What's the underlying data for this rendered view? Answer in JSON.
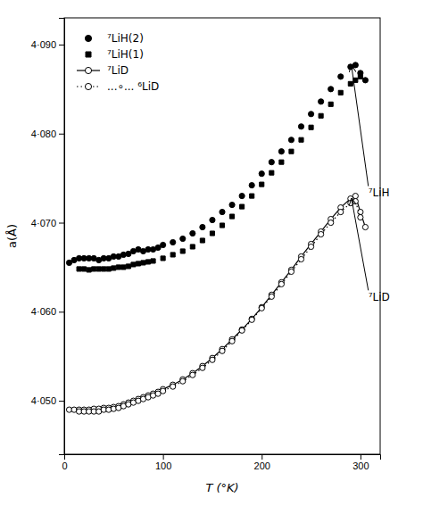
{
  "chart_data": {
    "type": "scatter",
    "xlabel": "T (°K)",
    "ylabel": "a(Å)",
    "xlim": [
      0,
      320
    ],
    "ylim": [
      4.044,
      4.093
    ],
    "xticks": [
      0,
      100,
      200,
      300
    ],
    "yticks": [
      {
        "value": 4.05,
        "label": "4·050"
      },
      {
        "value": 4.06,
        "label": "4·060"
      },
      {
        "value": 4.07,
        "label": "4·070"
      },
      {
        "value": 4.08,
        "label": "4·080"
      },
      {
        "value": 4.09,
        "label": "4·090"
      }
    ],
    "grid": false,
    "legend": "upper left",
    "series": [
      {
        "name": "⁷LiH(2)",
        "type": "scatter",
        "color": "#000000",
        "marker": "circle",
        "x": [
          5,
          10,
          15,
          20,
          25,
          30,
          35,
          40,
          45,
          50,
          55,
          60,
          65,
          70,
          75,
          80,
          85,
          90,
          95,
          100,
          110,
          120,
          130,
          140,
          150,
          160,
          170,
          180,
          190,
          200,
          210,
          220,
          230,
          240,
          250,
          260,
          270,
          280,
          290,
          295,
          300,
          305
        ],
        "values": [
          4.0655,
          4.0658,
          4.066,
          4.066,
          4.066,
          4.066,
          4.0658,
          4.066,
          4.066,
          4.0662,
          4.0662,
          4.0664,
          4.0665,
          4.0668,
          4.067,
          4.0668,
          4.067,
          4.067,
          4.0672,
          4.0675,
          4.0678,
          4.0682,
          4.0688,
          4.0695,
          4.0703,
          4.0712,
          4.072,
          4.073,
          4.0742,
          4.0755,
          4.0768,
          4.078,
          4.0793,
          4.0808,
          4.0822,
          4.0836,
          4.085,
          4.0864,
          4.0875,
          4.0877,
          4.0868,
          4.086
        ]
      },
      {
        "name": "⁷LiH(1)",
        "type": "scatter",
        "color": "#000000",
        "marker": "square",
        "x": [
          15,
          20,
          25,
          30,
          35,
          40,
          45,
          50,
          55,
          60,
          65,
          70,
          75,
          80,
          85,
          90,
          100,
          110,
          120,
          130,
          140,
          150,
          160,
          170,
          180,
          190,
          200,
          210,
          220,
          230,
          240,
          250,
          260,
          270,
          280,
          290,
          295,
          300
        ],
        "values": [
          4.0648,
          4.0648,
          4.0647,
          4.0648,
          4.0648,
          4.0648,
          4.0648,
          4.0649,
          4.065,
          4.065,
          4.0651,
          4.0653,
          4.0654,
          4.0655,
          4.0656,
          4.0657,
          4.066,
          4.0664,
          4.0668,
          4.0673,
          4.068,
          4.0688,
          4.0697,
          4.0707,
          4.0718,
          4.073,
          4.0743,
          4.0756,
          4.0768,
          4.078,
          4.0793,
          4.0807,
          4.082,
          4.0833,
          4.0846,
          4.0856,
          4.086,
          4.0864
        ]
      },
      {
        "name": "⁷LiD",
        "type": "line",
        "color": "#000000",
        "marker": "circle-open",
        "line_style": "solid",
        "x": [
          5,
          10,
          15,
          20,
          25,
          30,
          35,
          40,
          45,
          50,
          55,
          60,
          65,
          70,
          75,
          80,
          85,
          90,
          95,
          100,
          110,
          120,
          130,
          140,
          150,
          160,
          170,
          180,
          190,
          200,
          210,
          220,
          230,
          240,
          250,
          260,
          270,
          280,
          290,
          295,
          300,
          305
        ],
        "values": [
          4.049,
          4.049,
          4.049,
          4.049,
          4.049,
          4.0491,
          4.0491,
          4.0492,
          4.0492,
          4.0493,
          4.0494,
          4.0496,
          4.0498,
          4.05,
          4.0502,
          4.0504,
          4.0506,
          4.0508,
          4.051,
          4.0513,
          4.0518,
          4.0524,
          4.0531,
          4.0539,
          4.0548,
          4.0558,
          4.0569,
          4.058,
          4.0592,
          4.0605,
          4.0619,
          4.0633,
          4.0647,
          4.0662,
          4.0676,
          4.069,
          4.0704,
          4.0717,
          4.0727,
          4.073,
          4.0712,
          4.0695
        ]
      },
      {
        "name": "...∘... ⁶LiD",
        "type": "line",
        "color": "#000000",
        "marker": "circle-open",
        "line_style": "dotted",
        "x": [
          15,
          20,
          25,
          30,
          35,
          40,
          45,
          50,
          55,
          60,
          65,
          70,
          75,
          80,
          85,
          90,
          95,
          100,
          110,
          120,
          130,
          140,
          150,
          160,
          170,
          180,
          190,
          200,
          210,
          220,
          230,
          240,
          250,
          260,
          270,
          280,
          290,
          295,
          300
        ],
        "values": [
          4.0488,
          4.0488,
          4.0488,
          4.0488,
          4.0488,
          4.049,
          4.049,
          4.0491,
          4.0492,
          4.0494,
          4.0496,
          4.0498,
          4.05,
          4.0502,
          4.0504,
          4.0506,
          4.0508,
          4.0511,
          4.0516,
          4.0522,
          4.0529,
          4.0537,
          4.0546,
          4.0556,
          4.0567,
          4.0579,
          4.0591,
          4.0604,
          4.0617,
          4.0631,
          4.0645,
          4.0659,
          4.0673,
          4.0687,
          4.07,
          4.0712,
          4.0722,
          4.0724,
          4.0706
        ]
      }
    ],
    "annotations": [
      {
        "text": "⁷LiH",
        "x": 308,
        "y": 4.0738,
        "xy": [
          291,
          4.0876
        ]
      },
      {
        "text": "⁷LiD",
        "x": 308,
        "y": 4.0621,
        "xy": [
          291,
          4.0727
        ]
      }
    ]
  }
}
